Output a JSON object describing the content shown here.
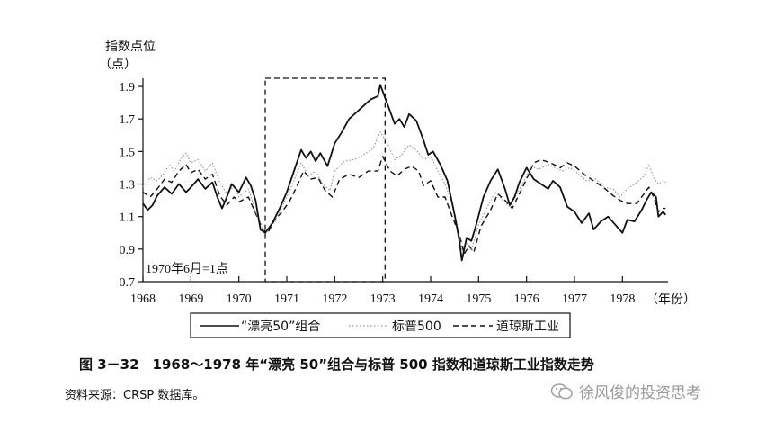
{
  "chart_data": {
    "type": "line",
    "title": "图 3－32　1968～1978 年“漂亮 50”组合与标普 500 指数和道琼斯工业指数走势",
    "ylabel": "指数点位",
    "ylabel_unit": "（点）",
    "xlabel": "（年份）",
    "ylim": [
      0.7,
      1.95
    ],
    "xlim": [
      1968,
      1978.95
    ],
    "yticks": [
      0.7,
      0.9,
      1.1,
      1.3,
      1.5,
      1.7,
      1.9
    ],
    "ytick_labels": [
      "0.7",
      "0.9",
      "1.1",
      "1.3",
      "1.5",
      "1.7",
      "1.9"
    ],
    "xticks": [
      1968,
      1969,
      1970,
      1971,
      1972,
      1973,
      1974,
      1975,
      1976,
      1977,
      1978
    ],
    "xtick_labels": [
      "1968",
      "1969",
      "1970",
      "1971",
      "1972",
      "1973",
      "1974",
      "1975",
      "1976",
      "1977",
      "1978"
    ],
    "annotation": "1970年6月=1点",
    "highlight_box": {
      "x0": 1970.55,
      "x1": 1973.05,
      "y0": 0.7,
      "y1": 1.95
    },
    "legend_position": "bottom",
    "series": [
      {
        "name": "“漂亮50”组合",
        "style": "solid",
        "points": [
          [
            1968.0,
            1.18
          ],
          [
            1968.1,
            1.14
          ],
          [
            1968.2,
            1.17
          ],
          [
            1968.3,
            1.23
          ],
          [
            1968.45,
            1.28
          ],
          [
            1968.6,
            1.24
          ],
          [
            1968.75,
            1.3
          ],
          [
            1968.9,
            1.25
          ],
          [
            1969.0,
            1.28
          ],
          [
            1969.15,
            1.33
          ],
          [
            1969.3,
            1.27
          ],
          [
            1969.45,
            1.31
          ],
          [
            1969.55,
            1.22
          ],
          [
            1969.65,
            1.15
          ],
          [
            1969.75,
            1.22
          ],
          [
            1969.85,
            1.3
          ],
          [
            1970.0,
            1.25
          ],
          [
            1970.15,
            1.34
          ],
          [
            1970.25,
            1.29
          ],
          [
            1970.35,
            1.2
          ],
          [
            1970.45,
            1.02
          ],
          [
            1970.55,
            1.0
          ],
          [
            1970.7,
            1.06
          ],
          [
            1970.85,
            1.15
          ],
          [
            1971.0,
            1.25
          ],
          [
            1971.15,
            1.38
          ],
          [
            1971.3,
            1.51
          ],
          [
            1971.4,
            1.46
          ],
          [
            1971.5,
            1.5
          ],
          [
            1971.6,
            1.44
          ],
          [
            1971.7,
            1.49
          ],
          [
            1971.85,
            1.41
          ],
          [
            1972.0,
            1.55
          ],
          [
            1972.15,
            1.62
          ],
          [
            1972.3,
            1.7
          ],
          [
            1972.45,
            1.74
          ],
          [
            1972.6,
            1.78
          ],
          [
            1972.75,
            1.82
          ],
          [
            1972.9,
            1.84
          ],
          [
            1972.95,
            1.91
          ],
          [
            1973.05,
            1.83
          ],
          [
            1973.15,
            1.75
          ],
          [
            1973.25,
            1.67
          ],
          [
            1973.35,
            1.7
          ],
          [
            1973.45,
            1.65
          ],
          [
            1973.55,
            1.73
          ],
          [
            1973.7,
            1.69
          ],
          [
            1973.85,
            1.57
          ],
          [
            1973.95,
            1.48
          ],
          [
            1974.05,
            1.5
          ],
          [
            1974.2,
            1.42
          ],
          [
            1974.35,
            1.32
          ],
          [
            1974.5,
            1.11
          ],
          [
            1974.6,
            0.95
          ],
          [
            1974.65,
            0.83
          ],
          [
            1974.75,
            0.97
          ],
          [
            1974.85,
            0.95
          ],
          [
            1974.95,
            1.05
          ],
          [
            1975.1,
            1.22
          ],
          [
            1975.25,
            1.32
          ],
          [
            1975.4,
            1.39
          ],
          [
            1975.55,
            1.27
          ],
          [
            1975.65,
            1.17
          ],
          [
            1975.75,
            1.22
          ],
          [
            1975.85,
            1.31
          ],
          [
            1976.0,
            1.4
          ],
          [
            1976.15,
            1.33
          ],
          [
            1976.3,
            1.3
          ],
          [
            1976.45,
            1.27
          ],
          [
            1976.55,
            1.32
          ],
          [
            1976.7,
            1.28
          ],
          [
            1976.85,
            1.16
          ],
          [
            1977.0,
            1.13
          ],
          [
            1977.15,
            1.06
          ],
          [
            1977.3,
            1.12
          ],
          [
            1977.4,
            1.02
          ],
          [
            1977.55,
            1.07
          ],
          [
            1977.7,
            1.1
          ],
          [
            1977.85,
            1.05
          ],
          [
            1978.0,
            1.0
          ],
          [
            1978.1,
            1.08
          ],
          [
            1978.25,
            1.07
          ],
          [
            1978.4,
            1.14
          ],
          [
            1978.5,
            1.2
          ],
          [
            1978.6,
            1.25
          ],
          [
            1978.7,
            1.22
          ],
          [
            1978.75,
            1.1
          ],
          [
            1978.85,
            1.13
          ],
          [
            1978.9,
            1.11
          ]
        ]
      },
      {
        "name": "标普500",
        "style": "dotted",
        "points": [
          [
            1968.0,
            1.28
          ],
          [
            1968.15,
            1.34
          ],
          [
            1968.3,
            1.32
          ],
          [
            1968.45,
            1.37
          ],
          [
            1968.55,
            1.42
          ],
          [
            1968.65,
            1.38
          ],
          [
            1968.8,
            1.46
          ],
          [
            1968.9,
            1.49
          ],
          [
            1969.0,
            1.43
          ],
          [
            1969.15,
            1.45
          ],
          [
            1969.3,
            1.38
          ],
          [
            1969.45,
            1.43
          ],
          [
            1969.6,
            1.31
          ],
          [
            1969.75,
            1.24
          ],
          [
            1969.9,
            1.29
          ],
          [
            1970.0,
            1.22
          ],
          [
            1970.2,
            1.27
          ],
          [
            1970.35,
            1.13
          ],
          [
            1970.55,
            1.0
          ],
          [
            1970.75,
            1.07
          ],
          [
            1971.0,
            1.22
          ],
          [
            1971.15,
            1.32
          ],
          [
            1971.3,
            1.43
          ],
          [
            1971.45,
            1.35
          ],
          [
            1971.6,
            1.38
          ],
          [
            1971.75,
            1.3
          ],
          [
            1971.9,
            1.26
          ],
          [
            1972.0,
            1.38
          ],
          [
            1972.2,
            1.44
          ],
          [
            1972.4,
            1.45
          ],
          [
            1972.6,
            1.48
          ],
          [
            1972.8,
            1.52
          ],
          [
            1972.95,
            1.62
          ],
          [
            1973.1,
            1.55
          ],
          [
            1973.25,
            1.45
          ],
          [
            1973.4,
            1.48
          ],
          [
            1973.55,
            1.54
          ],
          [
            1973.7,
            1.51
          ],
          [
            1973.85,
            1.45
          ],
          [
            1974.0,
            1.47
          ],
          [
            1974.15,
            1.38
          ],
          [
            1974.3,
            1.3
          ],
          [
            1974.45,
            1.18
          ],
          [
            1974.55,
            1.06
          ],
          [
            1974.65,
            0.9
          ],
          [
            1974.75,
            0.94
          ],
          [
            1974.85,
            0.89
          ],
          [
            1975.0,
            1.05
          ],
          [
            1975.2,
            1.17
          ],
          [
            1975.35,
            1.25
          ],
          [
            1975.5,
            1.2
          ],
          [
            1975.65,
            1.16
          ],
          [
            1975.8,
            1.24
          ],
          [
            1975.95,
            1.32
          ],
          [
            1976.1,
            1.41
          ],
          [
            1976.25,
            1.39
          ],
          [
            1976.45,
            1.42
          ],
          [
            1976.6,
            1.4
          ],
          [
            1976.75,
            1.38
          ],
          [
            1976.9,
            1.4
          ],
          [
            1977.05,
            1.37
          ],
          [
            1977.25,
            1.32
          ],
          [
            1977.45,
            1.33
          ],
          [
            1977.6,
            1.28
          ],
          [
            1977.8,
            1.27
          ],
          [
            1977.95,
            1.22
          ],
          [
            1978.1,
            1.27
          ],
          [
            1978.3,
            1.31
          ],
          [
            1978.45,
            1.35
          ],
          [
            1978.55,
            1.42
          ],
          [
            1978.65,
            1.34
          ],
          [
            1978.75,
            1.3
          ],
          [
            1978.85,
            1.32
          ],
          [
            1978.9,
            1.31
          ]
        ]
      },
      {
        "name": "道琼斯工业",
        "style": "dashed",
        "points": [
          [
            1968.0,
            1.25
          ],
          [
            1968.15,
            1.22
          ],
          [
            1968.3,
            1.27
          ],
          [
            1968.45,
            1.33
          ],
          [
            1968.6,
            1.31
          ],
          [
            1968.75,
            1.38
          ],
          [
            1968.9,
            1.42
          ],
          [
            1969.0,
            1.37
          ],
          [
            1969.15,
            1.39
          ],
          [
            1969.3,
            1.33
          ],
          [
            1969.45,
            1.36
          ],
          [
            1969.6,
            1.23
          ],
          [
            1969.75,
            1.17
          ],
          [
            1969.9,
            1.22
          ],
          [
            1970.0,
            1.19
          ],
          [
            1970.2,
            1.22
          ],
          [
            1970.35,
            1.12
          ],
          [
            1970.5,
            1.02
          ],
          [
            1970.6,
            1.0
          ],
          [
            1970.75,
            1.08
          ],
          [
            1970.9,
            1.13
          ],
          [
            1971.05,
            1.19
          ],
          [
            1971.2,
            1.28
          ],
          [
            1971.35,
            1.38
          ],
          [
            1971.5,
            1.33
          ],
          [
            1971.65,
            1.34
          ],
          [
            1971.8,
            1.26
          ],
          [
            1971.95,
            1.22
          ],
          [
            1972.1,
            1.33
          ],
          [
            1972.3,
            1.36
          ],
          [
            1972.5,
            1.34
          ],
          [
            1972.7,
            1.38
          ],
          [
            1972.9,
            1.38
          ],
          [
            1973.0,
            1.47
          ],
          [
            1973.15,
            1.38
          ],
          [
            1973.3,
            1.35
          ],
          [
            1973.45,
            1.39
          ],
          [
            1973.6,
            1.41
          ],
          [
            1973.75,
            1.38
          ],
          [
            1973.85,
            1.29
          ],
          [
            1974.0,
            1.32
          ],
          [
            1974.15,
            1.22
          ],
          [
            1974.3,
            1.22
          ],
          [
            1974.45,
            1.1
          ],
          [
            1974.6,
            0.99
          ],
          [
            1974.7,
            0.87
          ],
          [
            1974.8,
            0.92
          ],
          [
            1974.9,
            0.88
          ],
          [
            1975.05,
            1.04
          ],
          [
            1975.25,
            1.14
          ],
          [
            1975.4,
            1.24
          ],
          [
            1975.55,
            1.2
          ],
          [
            1975.7,
            1.15
          ],
          [
            1975.85,
            1.24
          ],
          [
            1976.0,
            1.33
          ],
          [
            1976.15,
            1.43
          ],
          [
            1976.3,
            1.45
          ],
          [
            1976.5,
            1.43
          ],
          [
            1976.7,
            1.4
          ],
          [
            1976.85,
            1.43
          ],
          [
            1977.0,
            1.41
          ],
          [
            1977.2,
            1.36
          ],
          [
            1977.4,
            1.32
          ],
          [
            1977.6,
            1.28
          ],
          [
            1977.8,
            1.23
          ],
          [
            1977.95,
            1.2
          ],
          [
            1978.1,
            1.18
          ],
          [
            1978.3,
            1.18
          ],
          [
            1978.45,
            1.24
          ],
          [
            1978.55,
            1.28
          ],
          [
            1978.65,
            1.22
          ],
          [
            1978.75,
            1.13
          ],
          [
            1978.85,
            1.15
          ],
          [
            1978.9,
            1.15
          ]
        ]
      }
    ]
  },
  "footer": {
    "caption": "图 3－32　1968～1978 年“漂亮 50”组合与标普 500 指数和道琼斯工业指数走势",
    "source": "资料来源：CRSP 数据库。",
    "watermark": "徐风俊的投资思考"
  }
}
